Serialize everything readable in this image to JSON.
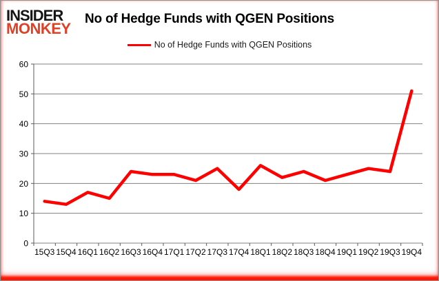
{
  "logo": {
    "line1": "INSIDER",
    "line2": "MONKEY"
  },
  "header": {
    "title": "No of Hedge Funds with QGEN Positions"
  },
  "legend": {
    "label": "No of Hedge Funds with QGEN Positions",
    "line_color": "#ff0000"
  },
  "colors": {
    "line": "#ff0000",
    "grid": "#808080",
    "axis": "#595959",
    "tick_text": "#000000",
    "logo_black": "#151515",
    "logo_red": "#dd4227",
    "frame_glow": "#ff0000",
    "background": "#ffffff"
  },
  "chart_data": {
    "type": "line",
    "title": "No of Hedge Funds with QGEN Positions",
    "categories": [
      "15Q3",
      "15Q4",
      "16Q1",
      "16Q2",
      "16Q3",
      "16Q4",
      "17Q1",
      "17Q2",
      "17Q3",
      "17Q4",
      "18Q1",
      "18Q2",
      "18Q3",
      "18Q4",
      "19Q1",
      "19Q2",
      "19Q3",
      "19Q4"
    ],
    "series": [
      {
        "name": "No of Hedge Funds with QGEN Positions",
        "color": "#ff0000",
        "values": [
          14,
          13,
          17,
          15,
          24,
          23,
          23,
          21,
          25,
          18,
          26,
          22,
          24,
          21,
          23,
          25,
          24,
          51
        ]
      }
    ],
    "xlabel": "",
    "ylabel": "",
    "ylim": [
      0,
      60
    ],
    "yticks": [
      0,
      10,
      20,
      30,
      40,
      50,
      60
    ],
    "grid": "horizontal",
    "legend_position": "top-center"
  }
}
